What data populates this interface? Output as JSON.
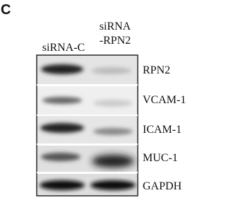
{
  "panel": "C",
  "columns": [
    [
      "siRNA-C"
    ],
    [
      "siRNA",
      "-RPN2"
    ]
  ],
  "rows": [
    "RPN2",
    "VCAM-1",
    "ICAM-1",
    "MUC-1",
    "GAPDH"
  ]
}
